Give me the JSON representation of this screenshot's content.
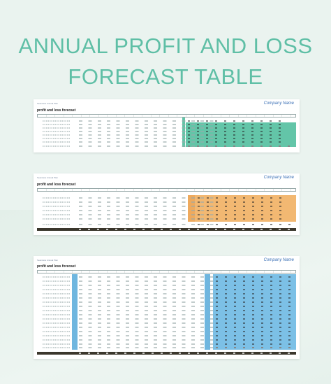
{
  "title": {
    "line1": "ANNUAL PROFIT AND LOSS",
    "line2": "FORECAST TABLE"
  },
  "sheets": [
    {
      "brand": "Seamless Annual Plan",
      "company": "Company Name",
      "title": "profit and loss forecast",
      "color": "#63c5a8"
    },
    {
      "brand": "Seamless Annual Plan",
      "company": "Company Name",
      "title": "profit and loss forecast",
      "color": "#eeaa5e"
    },
    {
      "brand": "Seamless Annual Plan",
      "company": "Company Name",
      "title": "profit and loss forecast",
      "color": "#6fb6df"
    }
  ],
  "colors": {
    "title": "#5fbfa6",
    "background": "#eaf3ef",
    "company": "#3a6fb5",
    "total_bar": "#3a362c"
  }
}
